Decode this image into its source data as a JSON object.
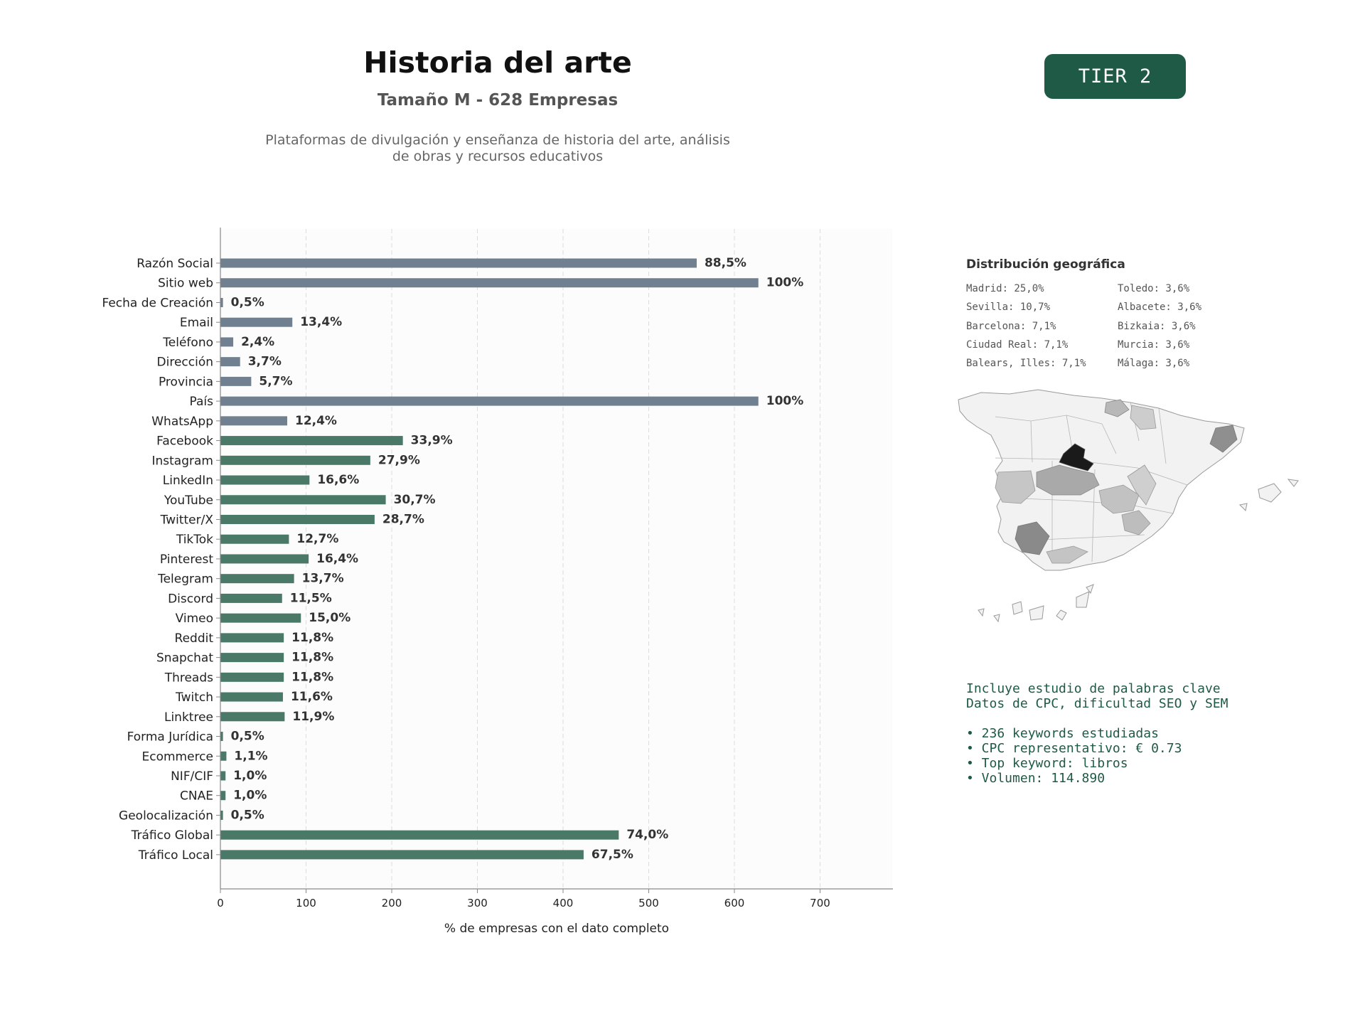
{
  "header": {
    "title": "Historia del arte",
    "subtitle": "Tamaño M - 628 Empresas",
    "description_line1": "Plataformas de divulgación y enseñanza de historia del arte, análisis",
    "description_line2": "de obras y recursos educativos",
    "tier_badge": "TIER 2"
  },
  "chart_data": {
    "type": "bar",
    "orientation": "horizontal",
    "xlabel": "% de empresas con el dato completo",
    "xlim": [
      0,
      780
    ],
    "xticks": [
      0,
      100,
      200,
      300,
      400,
      500,
      600,
      700
    ],
    "grid": true,
    "categories": [
      "Razón Social",
      "Sitio web",
      "Fecha de Creación",
      "Email",
      "Teléfono",
      "Dirección",
      "Provincia",
      "País",
      "WhatsApp",
      "Facebook",
      "Instagram",
      "LinkedIn",
      "YouTube",
      "Twitter/X",
      "TikTok",
      "Pinterest",
      "Telegram",
      "Discord",
      "Vimeo",
      "Reddit",
      "Snapchat",
      "Threads",
      "Twitch",
      "Linktree",
      "Forma Jurídica",
      "Ecommerce",
      "NIF/CIF",
      "CNAE",
      "Geolocalización",
      "Tráfico Global",
      "Tráfico Local"
    ],
    "values": [
      556,
      628,
      3,
      84,
      15,
      23,
      36,
      628,
      78,
      213,
      175,
      104,
      193,
      180,
      80,
      103,
      86,
      72,
      94,
      74,
      74,
      74,
      73,
      75,
      3,
      7,
      6,
      6,
      3,
      465,
      424
    ],
    "data_labels": [
      "88,5%",
      "100%",
      "0,5%",
      "13,4%",
      "2,4%",
      "3,7%",
      "5,7%",
      "100%",
      "12,4%",
      "33,9%",
      "27,9%",
      "16,6%",
      "30,7%",
      "28,7%",
      "12,7%",
      "16,4%",
      "13,7%",
      "11,5%",
      "15,0%",
      "11,8%",
      "11,8%",
      "11,8%",
      "11,6%",
      "11,9%",
      "0,5%",
      "1,1%",
      "1,0%",
      "1,0%",
      "0,5%",
      "74,0%",
      "67,5%"
    ],
    "group": [
      "basic",
      "basic",
      "basic",
      "basic",
      "basic",
      "basic",
      "basic",
      "basic",
      "basic",
      "social",
      "social",
      "social",
      "social",
      "social",
      "social",
      "social",
      "social",
      "social",
      "social",
      "social",
      "social",
      "social",
      "social",
      "social",
      "social",
      "social",
      "social",
      "social",
      "social",
      "social",
      "social"
    ],
    "colors": {
      "basic": "#708090",
      "social": "#4a7a67",
      "label": "#333333",
      "grid": "#dddddd",
      "axis": "#888888",
      "plot_bg": "#fcfcfc"
    }
  },
  "geo": {
    "title": "Distribución geográfica",
    "items": [
      "Madrid: 25,0%",
      "Toledo: 3,6%",
      "Sevilla: 10,7%",
      "Albacete: 3,6%",
      "Barcelona: 7,1%",
      "Bizkaia: 3,6%",
      "Ciudad Real: 7,1%",
      "Murcia: 3,6%",
      "Balears, Illes: 7,1%",
      "Málaga: 3,6%"
    ]
  },
  "keywords": {
    "line1": "Incluye estudio de palabras clave",
    "line2": "Datos de CPC, dificultad SEO y SEM",
    "bullets": [
      "• 236 keywords estudiadas",
      "• CPC representativo: € 0.73",
      "• Top keyword: libros",
      "• Volumen: 114.890"
    ]
  }
}
